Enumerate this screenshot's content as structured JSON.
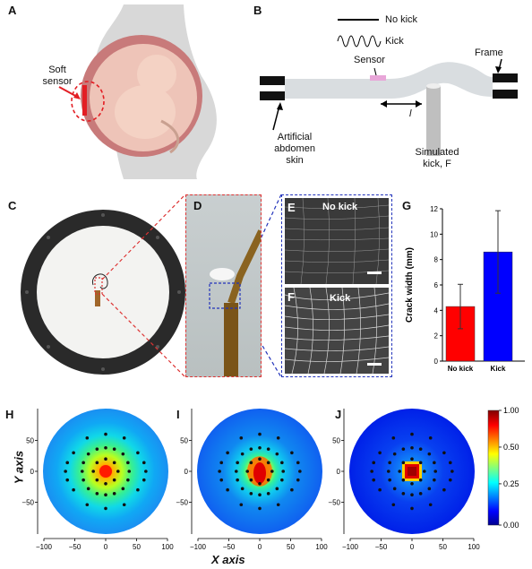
{
  "panels": {
    "a": {
      "label": "A",
      "sensor_label": "Soft sensor"
    },
    "b": {
      "label": "B",
      "legend_no_kick": "No kick",
      "legend_kick": "Kick",
      "sensor": "Sensor",
      "frame": "Frame",
      "skin": "Artificial abdomen skin",
      "l_label": "l",
      "kick_label": "Simulated kick, F"
    },
    "c": {
      "label": "C"
    },
    "d": {
      "label": "D"
    },
    "e": {
      "label": "E",
      "title": "No kick"
    },
    "f": {
      "label": "F",
      "title": "Kick"
    },
    "g": {
      "label": "G"
    },
    "h": {
      "label": "H"
    },
    "i": {
      "label": "I"
    },
    "j": {
      "label": "J"
    }
  },
  "axes_shared": {
    "x_axis": "X axis",
    "y_axis": "Y axis",
    "x_ticks": [
      "−100",
      "−50",
      "0",
      "50",
      "100"
    ],
    "y_ticks": [
      "50",
      "0",
      "−50"
    ],
    "colorbar_ticks": [
      "1.00",
      "0.50",
      "0.25",
      "0.00"
    ]
  },
  "chart_data": [
    {
      "type": "bar",
      "panel": "G",
      "categories": [
        "No kick",
        "Kick"
      ],
      "values": [
        4.3,
        8.6
      ],
      "errors": [
        1.75,
        3.25
      ],
      "colors": [
        "#ff0000",
        "#0000ff"
      ],
      "ylabel": "Crack width (mm)",
      "ylim": [
        0,
        12
      ],
      "yticks": [
        "0",
        "2",
        "4",
        "6",
        "8",
        "10",
        "12"
      ]
    },
    {
      "type": "heatmap",
      "panel": "H",
      "xlim": [
        -100,
        100
      ],
      "ylim": [
        -100,
        100
      ],
      "clim": [
        0,
        1
      ],
      "peak_spread": 45
    },
    {
      "type": "heatmap",
      "panel": "I",
      "xlim": [
        -100,
        100
      ],
      "ylim": [
        -100,
        100
      ],
      "clim": [
        0,
        1
      ],
      "peak_spread": 28
    },
    {
      "type": "heatmap",
      "panel": "J",
      "xlim": [
        -100,
        100
      ],
      "ylim": [
        -100,
        100
      ],
      "clim": [
        0,
        1
      ],
      "peak_spread": 10
    }
  ],
  "colors": {
    "red_dash": "#d33",
    "blue_dash": "#2233bb"
  }
}
